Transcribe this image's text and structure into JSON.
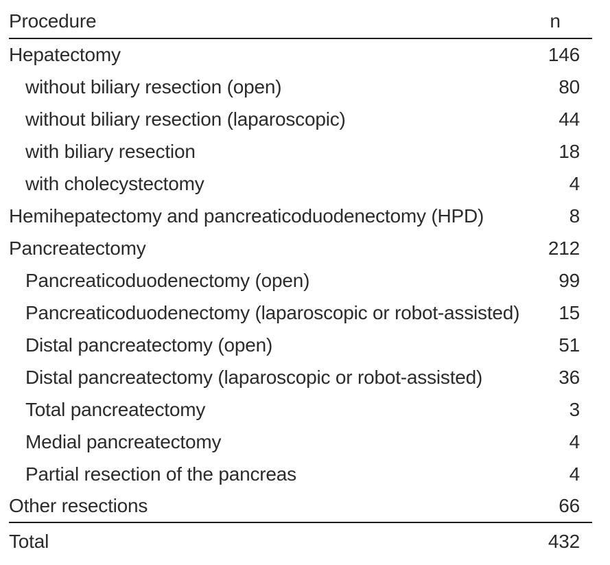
{
  "table": {
    "header": {
      "procedure": "Procedure",
      "n": "n"
    },
    "rows": [
      {
        "label": "Hepatectomy",
        "n": "146",
        "indent": false
      },
      {
        "label": "without biliary resection (open)",
        "n": "80",
        "indent": true
      },
      {
        "label": "without biliary resection (laparoscopic)",
        "n": "44",
        "indent": true
      },
      {
        "label": "with biliary resection",
        "n": "18",
        "indent": true
      },
      {
        "label": "with cholecystectomy",
        "n": "4",
        "indent": true
      },
      {
        "label": "Hemihepatectomy and pancreaticoduodenectomy (HPD)",
        "n": "8",
        "indent": false
      },
      {
        "label": "Pancreatectomy",
        "n": "212",
        "indent": false
      },
      {
        "label": "Pancreaticoduodenectomy (open)",
        "n": "99",
        "indent": true
      },
      {
        "label": "Pancreaticoduodenectomy (laparoscopic or robot-assisted)",
        "n": "15",
        "indent": true
      },
      {
        "label": "Distal pancreatectomy (open)",
        "n": "51",
        "indent": true
      },
      {
        "label": "Distal pancreatectomy (laparoscopic or robot-assisted)",
        "n": "36",
        "indent": true
      },
      {
        "label": "Total pancreatectomy",
        "n": "3",
        "indent": true
      },
      {
        "label": "Medial pancreatectomy",
        "n": "4",
        "indent": true
      },
      {
        "label": "Partial resection of the pancreas",
        "n": "4",
        "indent": true
      },
      {
        "label": "Other resections",
        "n": "66",
        "indent": false
      }
    ],
    "footer": {
      "label": "Total",
      "n": "432"
    }
  },
  "colors": {
    "text": "#2b2b2b",
    "rule": "#1c1c1c",
    "background": "#ffffff"
  }
}
